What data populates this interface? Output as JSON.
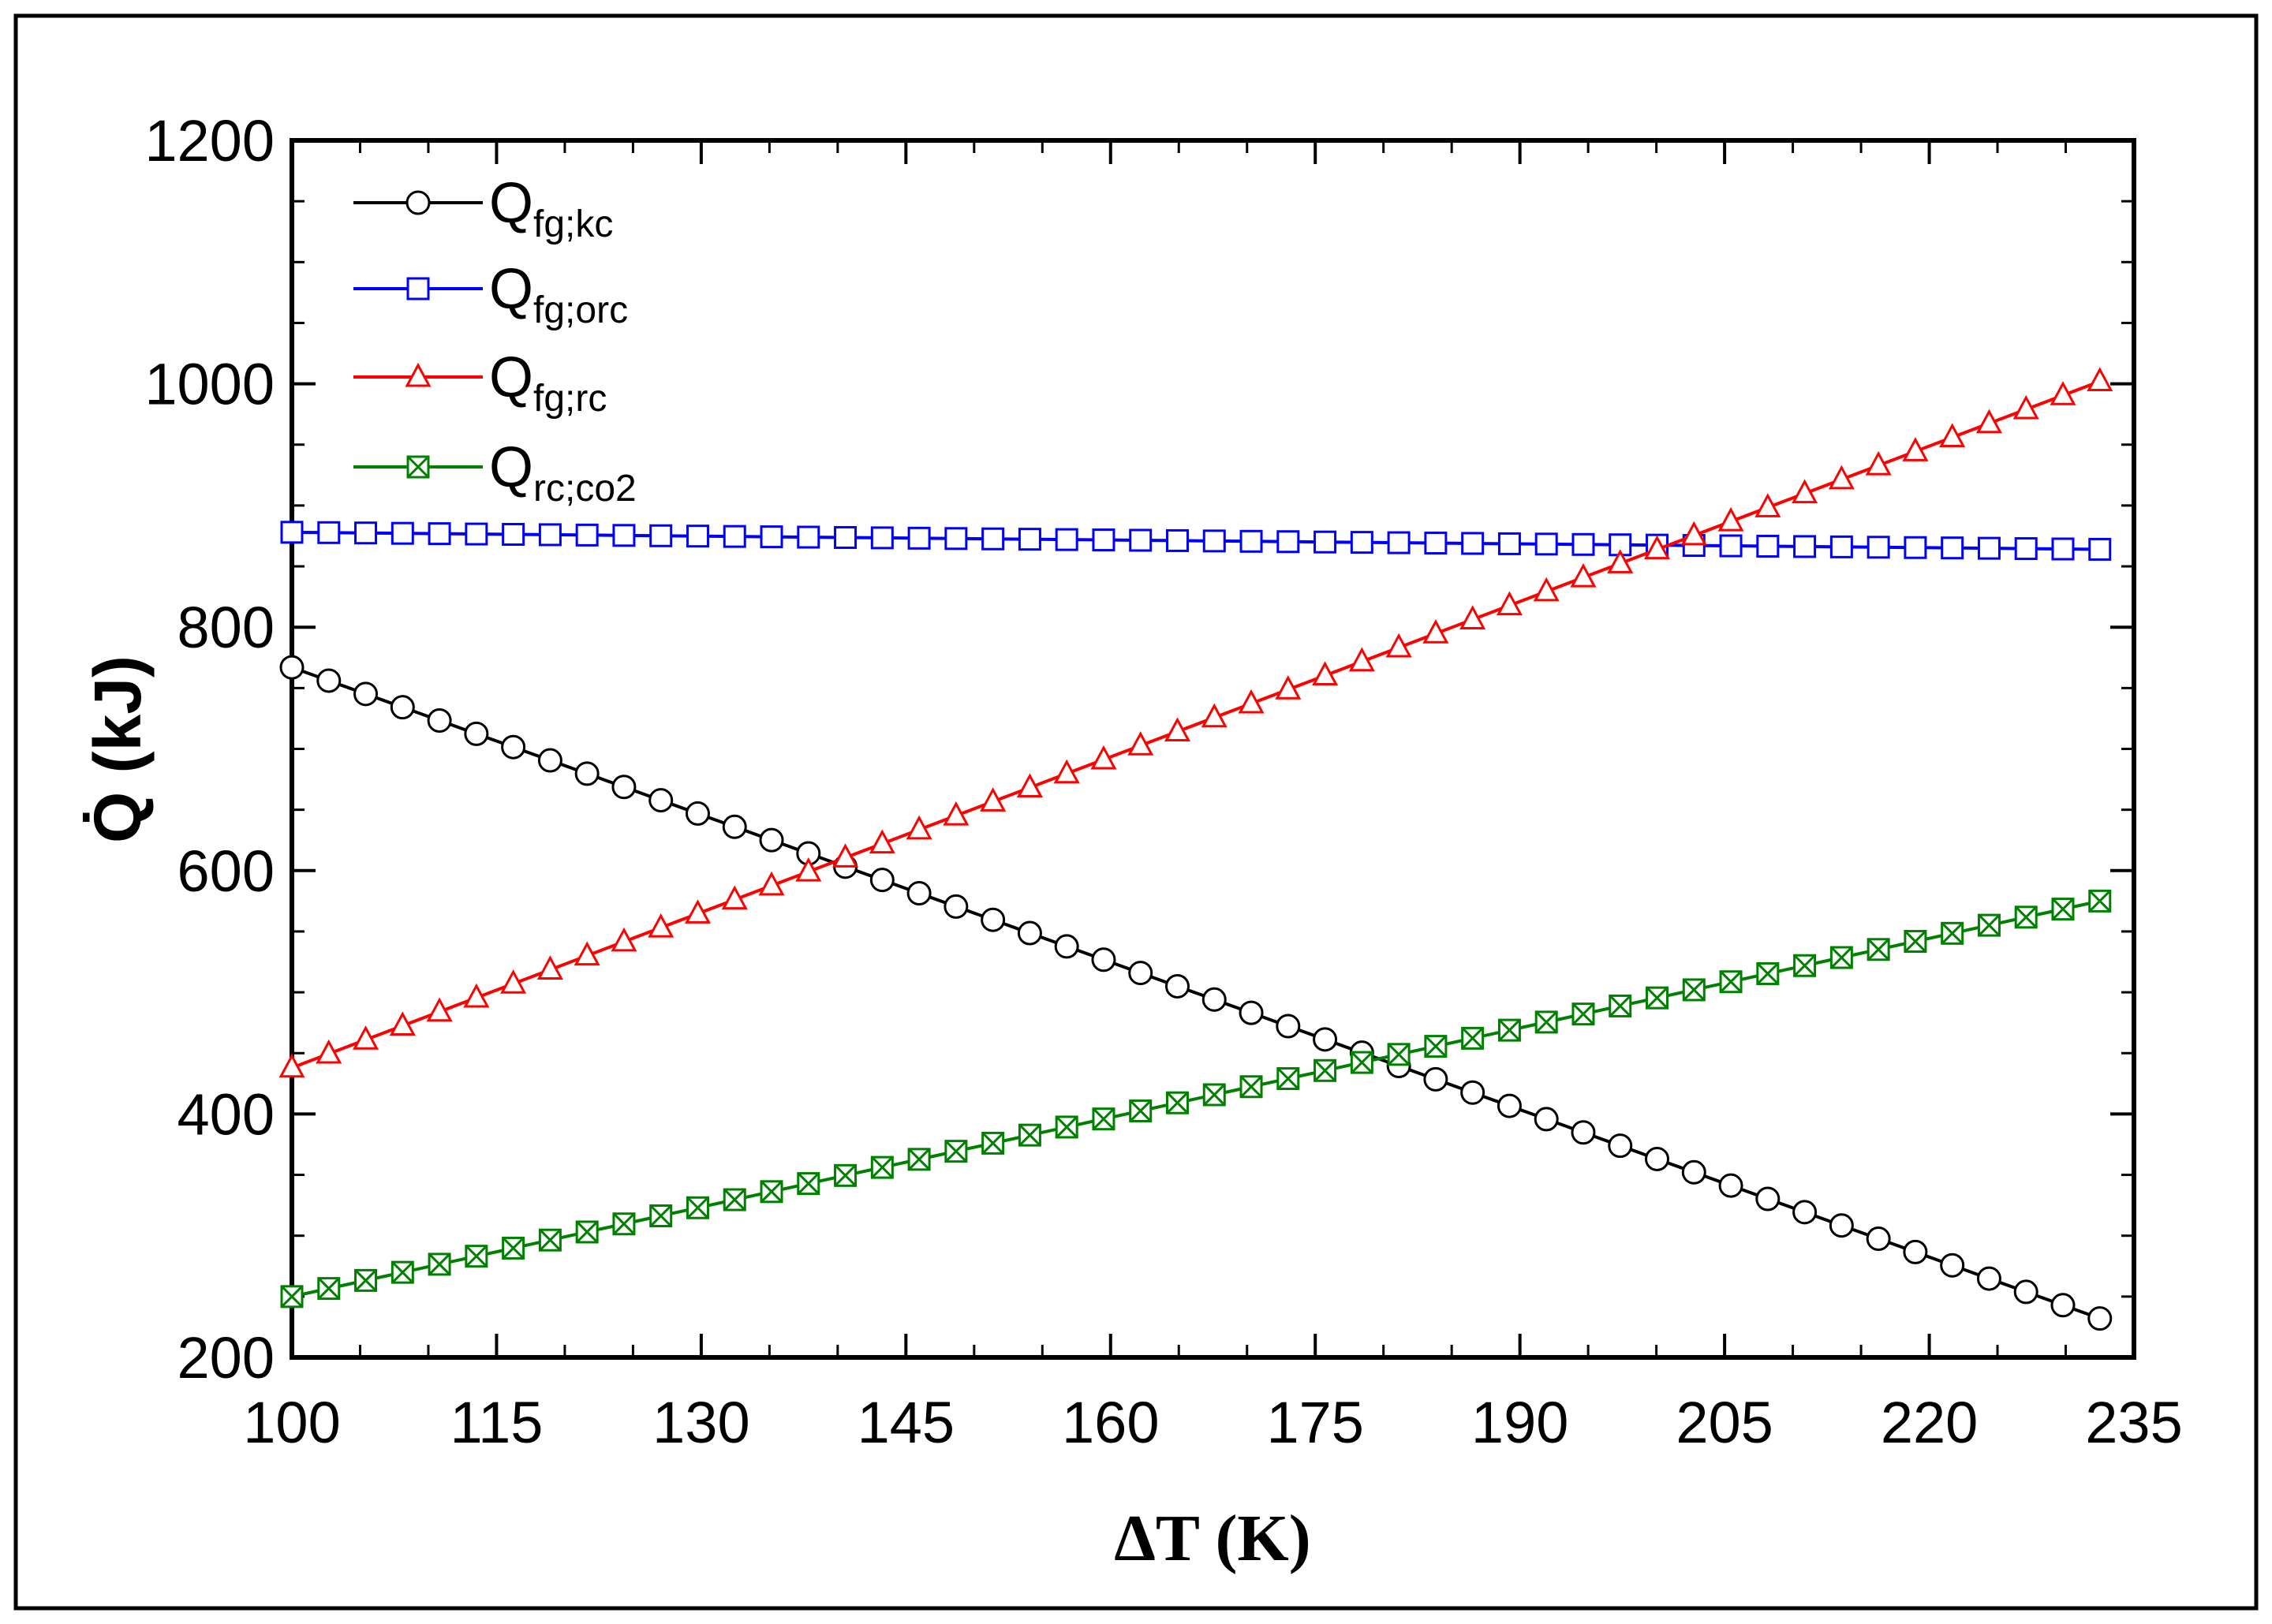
{
  "chart_data": {
    "type": "line",
    "title": "",
    "xlabel": "ΔT (K)",
    "ylabel": "Q̇ (kJ)",
    "xlim": [
      100,
      235
    ],
    "ylim": [
      200,
      1200
    ],
    "xticks": [
      100,
      115,
      130,
      145,
      160,
      175,
      190,
      205,
      220,
      235
    ],
    "yticks": [
      200,
      400,
      600,
      800,
      1000,
      1200
    ],
    "x_start": 100,
    "x_end": 232.5,
    "points": 50,
    "legend_position": "top-left",
    "series": [
      {
        "name": "Q",
        "subscript": "fg;kc",
        "color": "#000000",
        "marker": "circle",
        "values_at_start_end": [
          767,
          232
        ]
      },
      {
        "name": "Q",
        "subscript": "fg;orc",
        "color": "#0000ff",
        "marker": "square",
        "values_at_start_end": [
          878,
          864
        ]
      },
      {
        "name": "Q",
        "subscript": "fg;rc",
        "color": "#ff0000",
        "marker": "triangle",
        "values_at_start_end": [
          438,
          1002
        ]
      },
      {
        "name": "Q",
        "subscript": "rc;co2",
        "color": "#008000",
        "marker": "crossbox",
        "values_at_start_end": [
          250,
          575
        ]
      }
    ]
  }
}
